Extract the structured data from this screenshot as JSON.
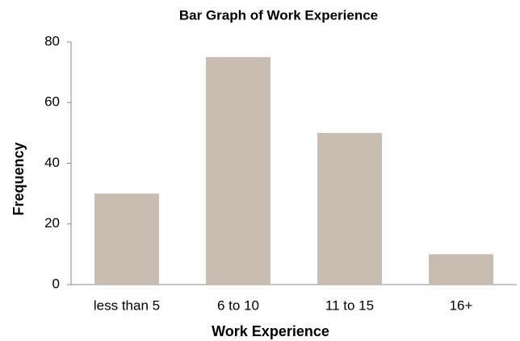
{
  "chart_data": {
    "type": "bar",
    "title": "Bar Graph of Work Experience",
    "x_label": "Work Experience",
    "y_label": "Frequency",
    "categories": [
      "less than 5",
      "6 to 10",
      "11 to 15",
      "16+"
    ],
    "values": [
      30,
      75,
      50,
      10
    ],
    "color": "#c9bcb1",
    "ylim": [
      0,
      80
    ],
    "yticks": [
      0,
      20,
      40,
      60,
      80
    ],
    "grid": false
  }
}
